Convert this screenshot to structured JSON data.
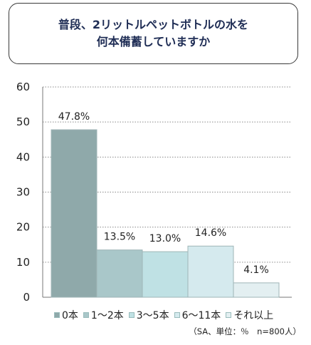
{
  "title": {
    "line1": "普段、2リットルペットボトルの水を",
    "line2": "何本備蓄していますか"
  },
  "note": "（SA、単位：％　n=800人）",
  "chart_data": {
    "type": "bar",
    "categories": [
      "0本",
      "1～2本",
      "3～5本",
      "6～11本",
      "それ以上"
    ],
    "values": [
      47.8,
      13.5,
      13.0,
      14.6,
      4.1
    ],
    "value_labels": [
      "47.8%",
      "13.5%",
      "13.0%",
      "14.6%",
      "4.1%"
    ],
    "colors": [
      "#8fa9aa",
      "#a9c7c9",
      "#bfe1e4",
      "#d5eaee",
      "#e3eff1"
    ],
    "y_ticks": [
      "0",
      "10",
      "20",
      "30",
      "40",
      "50",
      "60"
    ],
    "ylim": [
      0,
      60
    ],
    "grid": true,
    "legend": "bottom"
  }
}
